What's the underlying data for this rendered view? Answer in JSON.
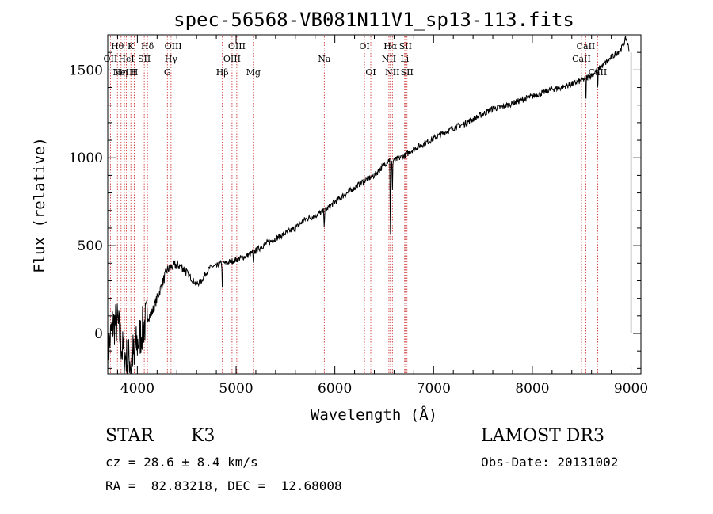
{
  "chart_data": {
    "type": "line",
    "title": "spec-56568-VB081N11V1_sp13-113.fits",
    "xlabel": "Wavelength (Å)",
    "ylabel": "Flux (relative)",
    "xlim": [
      3700,
      9100
    ],
    "ylim": [
      -230,
      1700
    ],
    "x_ticks": [
      4000,
      5000,
      6000,
      7000,
      8000,
      9000
    ],
    "x_tick_labels": [
      "4000",
      "5000",
      "6000",
      "7000",
      "8000",
      "9000"
    ],
    "y_ticks": [
      0,
      500,
      1000,
      1500
    ],
    "y_tick_labels": [
      "0",
      "500",
      "1000",
      "1500"
    ],
    "series": [
      {
        "name": "spectrum",
        "x": [
          3700,
          3750,
          3800,
          3850,
          3900,
          3950,
          4000,
          4050,
          4100,
          4150,
          4200,
          4250,
          4300,
          4350,
          4400,
          4450,
          4500,
          4550,
          4600,
          4650,
          4700,
          4750,
          4800,
          4850,
          4900,
          4950,
          5000,
          5100,
          5200,
          5300,
          5400,
          5500,
          5600,
          5700,
          5800,
          5900,
          6000,
          6100,
          6200,
          6300,
          6400,
          6500,
          6550,
          6600,
          6700,
          6800,
          6900,
          7000,
          7100,
          7200,
          7300,
          7400,
          7500,
          7600,
          7700,
          7800,
          7900,
          8000,
          8100,
          8200,
          8300,
          8400,
          8500,
          8600,
          8700,
          8800,
          8900,
          8950,
          8980
        ],
        "y": [
          -120,
          50,
          60,
          -100,
          -150,
          -120,
          -60,
          20,
          90,
          120,
          200,
          280,
          360,
          380,
          390,
          380,
          350,
          310,
          280,
          300,
          350,
          380,
          380,
          400,
          400,
          410,
          420,
          440,
          470,
          510,
          540,
          570,
          600,
          650,
          670,
          700,
          750,
          790,
          830,
          870,
          900,
          960,
          990,
          985,
          1010,
          1050,
          1080,
          1110,
          1140,
          1170,
          1190,
          1220,
          1250,
          1280,
          1290,
          1310,
          1330,
          1350,
          1370,
          1390,
          1400,
          1420,
          1440,
          1470,
          1520,
          1570,
          1620,
          1680,
          1620
        ]
      }
    ],
    "line_marks": [
      {
        "wavelength": 3727,
        "labels": [
          "OII"
        ],
        "row": [
          2
        ]
      },
      {
        "wavelength": 3798,
        "labels": [
          "Hθ"
        ],
        "row": [
          1
        ]
      },
      {
        "wavelength": 3835,
        "labels": [
          "Hη"
        ],
        "row": [
          3
        ]
      },
      {
        "wavelength": 3869,
        "labels": [
          "NeIII"
        ],
        "row": [
          3
        ]
      },
      {
        "wavelength": 3889,
        "labels": [
          "HeI"
        ],
        "row": [
          2
        ]
      },
      {
        "wavelength": 3934,
        "labels": [
          "K"
        ],
        "row": [
          1
        ]
      },
      {
        "wavelength": 3969,
        "labels": [
          "H"
        ],
        "row": [
          3
        ]
      },
      {
        "wavelength": 4070,
        "labels": [
          "SII"
        ],
        "row": [
          2
        ]
      },
      {
        "wavelength": 4102,
        "labels": [
          "Hδ"
        ],
        "row": [
          1
        ]
      },
      {
        "wavelength": 4304,
        "labels": [
          "G"
        ],
        "row": [
          3
        ]
      },
      {
        "wavelength": 4341,
        "labels": [
          "Hγ"
        ],
        "row": [
          2
        ]
      },
      {
        "wavelength": 4363,
        "labels": [
          "OIII"
        ],
        "row": [
          1
        ]
      },
      {
        "wavelength": 4861,
        "labels": [
          "Hβ"
        ],
        "row": [
          3
        ]
      },
      {
        "wavelength": 4959,
        "labels": [
          "OIII"
        ],
        "row": [
          2
        ]
      },
      {
        "wavelength": 5007,
        "labels": [
          "OIII"
        ],
        "row": [
          1
        ]
      },
      {
        "wavelength": 5175,
        "labels": [
          "Mg"
        ],
        "row": [
          3
        ]
      },
      {
        "wavelength": 5893,
        "labels": [
          "Na"
        ],
        "row": [
          2
        ]
      },
      {
        "wavelength": 6300,
        "labels": [
          "OI"
        ],
        "row": [
          1
        ]
      },
      {
        "wavelength": 6364,
        "labels": [
          "OI"
        ],
        "row": [
          3
        ]
      },
      {
        "wavelength": 6548,
        "labels": [
          "NII"
        ],
        "row": [
          2
        ]
      },
      {
        "wavelength": 6563,
        "labels": [
          "Hα"
        ],
        "row": [
          1
        ]
      },
      {
        "wavelength": 6583,
        "labels": [
          "NII"
        ],
        "row": [
          3
        ]
      },
      {
        "wavelength": 6707,
        "labels": [
          "Li"
        ],
        "row": [
          2
        ]
      },
      {
        "wavelength": 6716,
        "labels": [
          "SII"
        ],
        "row": [
          1
        ]
      },
      {
        "wavelength": 6731,
        "labels": [
          "SII"
        ],
        "row": [
          3
        ]
      },
      {
        "wavelength": 8498,
        "labels": [
          "CaII"
        ],
        "row": [
          2
        ]
      },
      {
        "wavelength": 8542,
        "labels": [
          "CaII"
        ],
        "row": [
          1
        ]
      },
      {
        "wavelength": 8662,
        "labels": [
          "CaII"
        ],
        "row": [
          3
        ]
      }
    ]
  },
  "footer": {
    "object_class": "STAR",
    "subclass": "K3",
    "survey": "LAMOST DR3",
    "cz": "cz = 28.6 ± 8.4 km/s",
    "obs_date": "Obs-Date: 20131002",
    "coords": "RA =  82.83218, DEC =  12.68008"
  }
}
